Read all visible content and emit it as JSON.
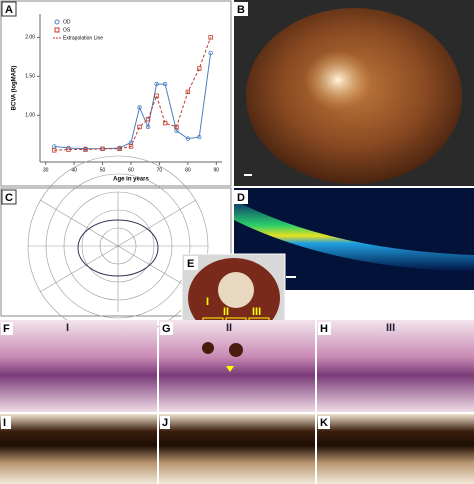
{
  "panels": {
    "a": "A",
    "b": "B",
    "c": "C",
    "d": "D",
    "e": "E",
    "f": "F",
    "g": "G",
    "h": "H",
    "i": "I",
    "j": "J",
    "k": "K",
    "roman1": "I",
    "roman2": "II",
    "roman3": "III"
  },
  "chart_data": {
    "type": "line",
    "x_label": "Age in years",
    "y_label": "BCVA (logMAR)",
    "x": [
      33,
      38,
      44,
      50,
      56,
      60,
      63,
      66,
      69,
      72,
      76,
      80,
      84,
      88
    ],
    "series": [
      {
        "name": "OD",
        "color": "#4a7fc1",
        "values": [
          0.6,
          0.58,
          0.57,
          0.57,
          0.58,
          0.65,
          1.1,
          0.85,
          1.4,
          1.4,
          0.8,
          0.7,
          0.72,
          1.8
        ]
      },
      {
        "name": "OS",
        "color": "#c0392b",
        "values": [
          0.55,
          0.56,
          0.56,
          0.57,
          0.57,
          0.6,
          0.85,
          0.95,
          1.25,
          0.9,
          0.85,
          1.3,
          1.6,
          2.0
        ]
      }
    ],
    "extrapolation_label": "Extrapolation Line",
    "xlim": [
      28,
      92
    ],
    "xticks": [
      30,
      40,
      50,
      60,
      70,
      80,
      90
    ],
    "ylim": [
      0.4,
      2.3
    ],
    "yticks": [
      {
        "value": 1,
        "label": "1.00"
      },
      {
        "value": 1.5,
        "label": "1.50"
      },
      {
        "value": 2,
        "label": "2.00"
      }
    ]
  }
}
